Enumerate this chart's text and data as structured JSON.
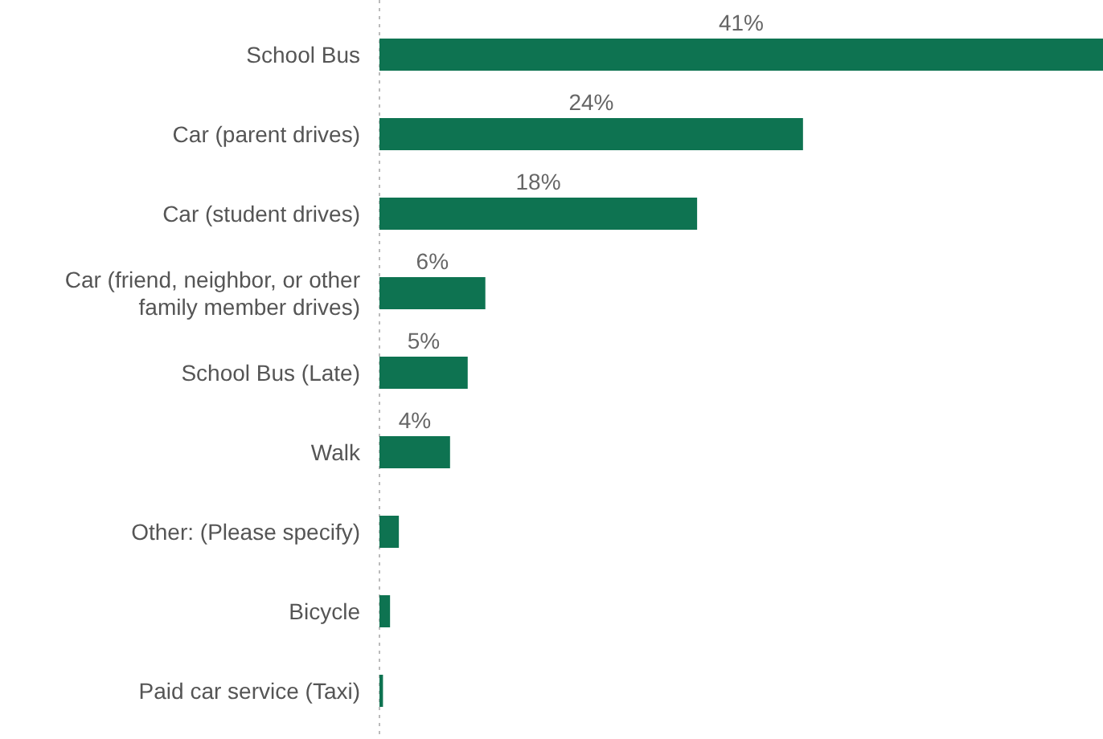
{
  "chart_data": {
    "type": "bar",
    "orientation": "horizontal",
    "categories": [
      "School Bus",
      "Car (parent drives)",
      "Car (student drives)",
      "Car (friend, neighbor, or other\nfamily member drives)",
      "School Bus (Late)",
      "Walk",
      "Other: (Please specify)",
      "Bicycle",
      "Paid car service (Taxi)"
    ],
    "values": [
      41,
      24,
      18,
      6,
      5,
      4,
      1.1,
      0.6,
      0.2
    ],
    "value_labels": [
      "41%",
      "24%",
      "18%",
      "6%",
      "5%",
      "4%",
      null,
      null,
      null
    ],
    "color": "#0e7351"
  }
}
